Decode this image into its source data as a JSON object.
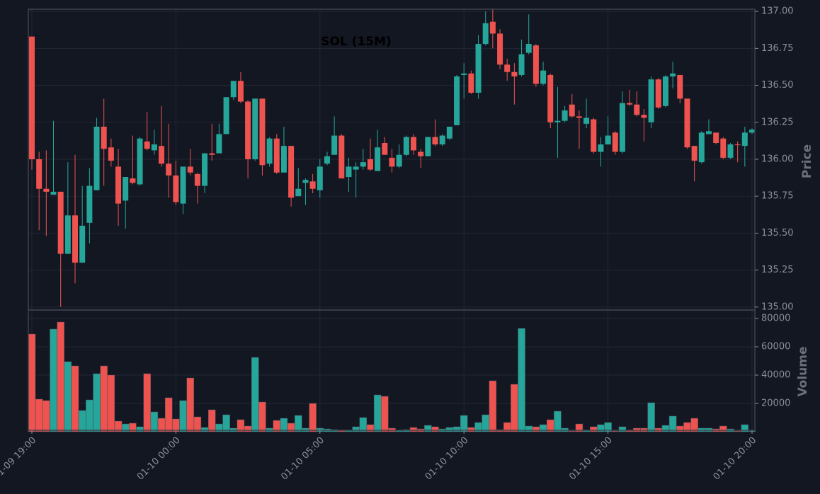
{
  "chart_data": [
    {
      "type": "candlestick",
      "title": "SOL (15M)",
      "ylabel": "Price",
      "up_color": "#26a69a",
      "down_color": "#ef5350",
      "x": [
        "01-09 19:00",
        "01-09 19:15",
        "01-09 19:30",
        "01-09 19:45",
        "01-09 20:00",
        "01-09 20:15",
        "01-09 20:30",
        "01-09 20:45",
        "01-09 21:00",
        "01-09 21:15",
        "01-09 21:30",
        "01-09 21:45",
        "01-09 22:00",
        "01-09 22:15",
        "01-09 22:30",
        "01-09 22:45",
        "01-09 23:00",
        "01-09 23:15",
        "01-09 23:30",
        "01-09 23:45",
        "01-10 00:00",
        "01-10 00:15",
        "01-10 00:30",
        "01-10 00:45",
        "01-10 01:00",
        "01-10 01:15",
        "01-10 01:30",
        "01-10 01:45",
        "01-10 02:00",
        "01-10 02:15",
        "01-10 02:30",
        "01-10 02:45",
        "01-10 03:00",
        "01-10 03:15",
        "01-10 03:30",
        "01-10 03:45",
        "01-10 04:00",
        "01-10 04:15",
        "01-10 04:30",
        "01-10 04:45",
        "01-10 05:00",
        "01-10 05:15",
        "01-10 05:30",
        "01-10 05:45",
        "01-10 06:00",
        "01-10 06:15",
        "01-10 06:30",
        "01-10 06:45",
        "01-10 07:00",
        "01-10 07:15",
        "01-10 07:30",
        "01-10 07:45",
        "01-10 08:00",
        "01-10 08:15",
        "01-10 08:30",
        "01-10 08:45",
        "01-10 09:00",
        "01-10 09:15",
        "01-10 09:30",
        "01-10 09:45",
        "01-10 10:00",
        "01-10 10:15",
        "01-10 10:30",
        "01-10 10:45",
        "01-10 11:00",
        "01-10 11:15",
        "01-10 11:30",
        "01-10 11:45",
        "01-10 12:00",
        "01-10 12:15",
        "01-10 12:30",
        "01-10 12:45",
        "01-10 13:00",
        "01-10 13:15",
        "01-10 13:30",
        "01-10 13:45",
        "01-10 14:00",
        "01-10 14:15",
        "01-10 14:30",
        "01-10 14:45",
        "01-10 15:00",
        "01-10 15:15",
        "01-10 15:30",
        "01-10 15:45",
        "01-10 16:00",
        "01-10 16:15",
        "01-10 16:30",
        "01-10 16:45",
        "01-10 17:00",
        "01-10 17:15",
        "01-10 17:30",
        "01-10 17:45",
        "01-10 18:00",
        "01-10 18:15",
        "01-10 18:30",
        "01-10 18:45",
        "01-10 19:00",
        "01-10 19:15",
        "01-10 19:30",
        "01-10 19:45",
        "01-10 20:00"
      ],
      "open": [
        136.83,
        136.0,
        135.8,
        135.76,
        135.78,
        135.36,
        135.62,
        135.3,
        135.57,
        135.79,
        136.22,
        136.08,
        135.95,
        135.72,
        135.87,
        135.83,
        136.12,
        136.06,
        136.09,
        135.97,
        135.89,
        135.7,
        135.95,
        135.9,
        135.82,
        136.04,
        136.04,
        136.17,
        136.42,
        136.53,
        136.39,
        136.0,
        136.41,
        135.97,
        136.14,
        135.91,
        136.09,
        135.75,
        135.84,
        135.85,
        135.79,
        135.97,
        136.03,
        136.16,
        135.88,
        135.93,
        135.95,
        136.0,
        135.92,
        136.11,
        136.01,
        135.95,
        136.03,
        136.15,
        136.05,
        136.02,
        136.15,
        136.1,
        136.14,
        136.23,
        136.57,
        136.58,
        136.45,
        136.78,
        136.93,
        136.85,
        136.64,
        136.59,
        136.57,
        136.72,
        136.77,
        136.51,
        136.57,
        136.25,
        136.26,
        136.37,
        136.29,
        136.24,
        136.27,
        136.05,
        136.1,
        136.18,
        136.05,
        136.38,
        136.37,
        136.3,
        136.25,
        136.54,
        136.36,
        136.56,
        136.57,
        136.41,
        136.09,
        135.98,
        136.17,
        136.18,
        136.14,
        136.01,
        136.1,
        136.09,
        136.18
      ],
      "high": [
        136.83,
        136.05,
        136.06,
        136.26,
        135.78,
        135.98,
        136.03,
        135.82,
        135.94,
        136.28,
        136.41,
        136.14,
        136.07,
        135.88,
        136.16,
        136.15,
        136.32,
        136.2,
        136.36,
        136.24,
        135.99,
        135.95,
        136.07,
        135.91,
        136.04,
        136.24,
        136.24,
        136.42,
        136.53,
        136.59,
        136.4,
        136.41,
        136.41,
        136.15,
        136.17,
        136.22,
        136.09,
        135.94,
        135.87,
        135.9,
        136.0,
        136.05,
        136.29,
        136.17,
        136.01,
        135.98,
        136.07,
        136.14,
        136.2,
        136.15,
        136.07,
        136.1,
        136.16,
        136.17,
        136.07,
        136.15,
        136.27,
        136.17,
        136.22,
        136.57,
        136.65,
        136.6,
        136.84,
        137.0,
        137.02,
        136.88,
        136.68,
        136.65,
        136.81,
        136.98,
        136.78,
        136.66,
        136.58,
        136.49,
        136.36,
        136.44,
        136.33,
        136.41,
        136.28,
        136.15,
        136.29,
        136.19,
        136.46,
        136.47,
        136.46,
        136.34,
        136.56,
        136.55,
        136.57,
        136.66,
        136.57,
        136.41,
        136.09,
        136.19,
        136.27,
        136.18,
        136.15,
        136.11,
        136.12,
        136.22,
        136.21
      ],
      "low": [
        135.93,
        135.52,
        135.48,
        135.76,
        135.0,
        135.36,
        135.16,
        135.3,
        135.43,
        135.79,
        135.82,
        135.95,
        135.55,
        135.53,
        135.83,
        135.82,
        136.06,
        136.03,
        135.95,
        135.74,
        135.69,
        135.63,
        135.89,
        135.7,
        135.77,
        135.99,
        136.04,
        136.17,
        136.4,
        136.38,
        135.87,
        135.99,
        135.89,
        135.95,
        135.9,
        135.91,
        135.68,
        135.75,
        135.69,
        135.77,
        135.74,
        135.96,
        136.03,
        135.87,
        135.78,
        135.74,
        135.93,
        135.92,
        135.92,
        136.03,
        135.91,
        135.94,
        136.02,
        136.03,
        135.94,
        136.02,
        136.09,
        136.09,
        136.13,
        136.23,
        136.41,
        136.44,
        136.41,
        136.77,
        136.75,
        136.61,
        136.53,
        136.37,
        136.56,
        136.71,
        136.49,
        136.5,
        136.21,
        136.01,
        136.25,
        136.28,
        136.07,
        136.21,
        136.04,
        135.95,
        136.1,
        136.03,
        136.04,
        136.36,
        136.29,
        136.12,
        136.21,
        136.34,
        136.35,
        136.48,
        136.38,
        136.07,
        135.85,
        135.97,
        136.17,
        136.1,
        136.0,
        136.0,
        135.98,
        135.95,
        136.17
      ],
      "close": [
        136.0,
        135.8,
        135.78,
        135.78,
        135.36,
        135.62,
        135.3,
        135.55,
        135.82,
        136.22,
        136.07,
        135.99,
        135.7,
        135.88,
        135.84,
        136.14,
        136.07,
        136.1,
        135.97,
        135.89,
        135.71,
        135.95,
        135.91,
        135.82,
        136.04,
        136.03,
        136.17,
        136.42,
        136.53,
        136.39,
        136.0,
        136.41,
        135.96,
        136.14,
        135.91,
        136.09,
        135.74,
        135.8,
        135.86,
        135.8,
        135.95,
        136.02,
        136.16,
        135.87,
        135.95,
        135.95,
        135.98,
        135.93,
        136.08,
        136.03,
        135.95,
        136.03,
        136.15,
        136.06,
        136.02,
        136.15,
        136.1,
        136.16,
        136.22,
        136.56,
        136.58,
        136.45,
        136.78,
        136.92,
        136.85,
        136.64,
        136.59,
        136.56,
        136.71,
        136.78,
        136.51,
        136.6,
        136.25,
        136.26,
        136.33,
        136.29,
        136.28,
        136.28,
        136.05,
        136.1,
        136.16,
        136.05,
        136.38,
        136.37,
        136.3,
        136.28,
        136.54,
        136.35,
        136.56,
        136.58,
        136.41,
        136.08,
        135.99,
        136.18,
        136.19,
        136.11,
        136.01,
        136.1,
        136.095,
        136.18,
        136.2
      ],
      "ylim": [
        134.98,
        137.015
      ],
      "yticks": [
        {
          "value": 135,
          "label": "135.00"
        },
        135.25,
        {
          "value": 135.5,
          "label": "135.50"
        },
        135.75,
        {
          "value": 136,
          "label": "136.00"
        },
        136.25,
        {
          "value": 136.5,
          "label": "136.50"
        },
        136.75,
        {
          "value": 137,
          "label": "137.00"
        }
      ],
      "xticks": [
        "01-09 19:00",
        "01-10 00:00",
        "01-10 05:00",
        "01-10 10:00",
        "01-10 15:00",
        "01-10 20:00"
      ],
      "grid": true
    },
    {
      "type": "bar",
      "ylabel": "Volume",
      "values": [
        69000,
        23000,
        22000,
        72500,
        77500,
        49500,
        46500,
        15000,
        22500,
        41000,
        46500,
        40000,
        7500,
        5500,
        6000,
        3500,
        41000,
        14000,
        9500,
        24000,
        9000,
        22000,
        38000,
        10500,
        3000,
        15500,
        5500,
        12000,
        2500,
        8500,
        4000,
        52500,
        21000,
        2500,
        8000,
        9500,
        6000,
        11500,
        2500,
        20000,
        2500,
        2000,
        1500,
        1000,
        1000,
        3500,
        10000,
        5000,
        26000,
        25000,
        2500,
        1000,
        1500,
        3000,
        2000,
        4500,
        3500,
        2000,
        3000,
        3500,
        11500,
        3000,
        6500,
        12000,
        36000,
        1500,
        6500,
        33500,
        73000,
        4000,
        3500,
        5000,
        8500,
        14500,
        2500,
        500,
        5500,
        1000,
        3500,
        5000,
        6500,
        500,
        3500,
        1000,
        2500,
        2500,
        20500,
        2500,
        4500,
        11000,
        4000,
        6500,
        9500,
        2500,
        2500,
        2000,
        4000,
        2000,
        500,
        5000,
        500
      ],
      "ylim": [
        0,
        86000
      ],
      "yticks": [
        20000,
        40000,
        60000,
        80000
      ],
      "grid": true
    }
  ]
}
